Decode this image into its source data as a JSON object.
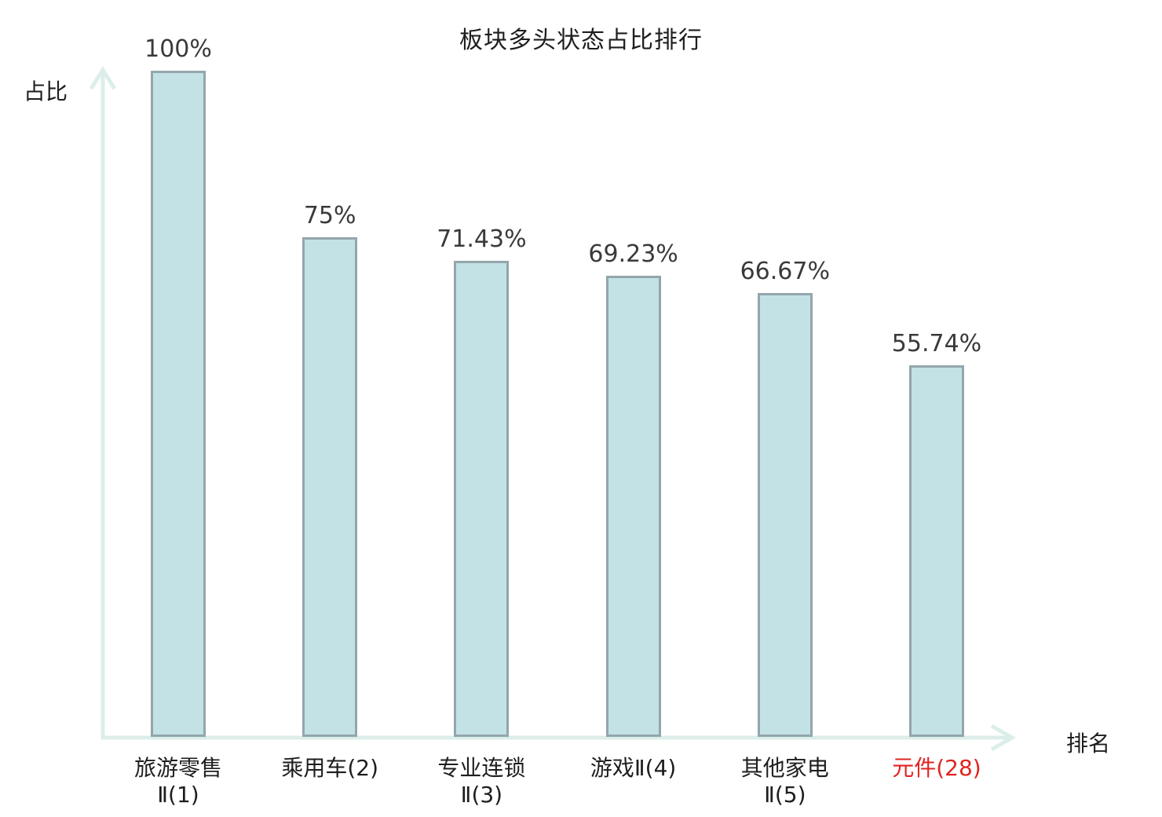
{
  "chart_data": {
    "type": "bar",
    "title": "板块多头状态占比排行",
    "xlabel": "排名",
    "ylabel": "占比",
    "ylim": [
      0,
      100
    ],
    "grid": false,
    "legend": false,
    "categories": [
      "旅游零售Ⅱ(1)",
      "乘用车(2)",
      "专业连锁Ⅱ(3)",
      "游戏Ⅱ(4)",
      "其他家电Ⅱ(5)",
      "元件(28)"
    ],
    "category_lines": [
      [
        "旅游零售",
        "Ⅱ(1)"
      ],
      [
        "乘用车(2)"
      ],
      [
        "专业连锁",
        "Ⅱ(3)"
      ],
      [
        "游戏Ⅱ(4)"
      ],
      [
        "其他家电",
        "Ⅱ(5)"
      ],
      [
        "元件(28)"
      ]
    ],
    "values": [
      100,
      75,
      71.43,
      69.23,
      66.67,
      55.74
    ],
    "value_labels": [
      "100%",
      "75%",
      "71.43%",
      "69.23%",
      "66.67%",
      "55.74%"
    ],
    "highlight_index": 5,
    "colors": {
      "bar_fill": "#c3e2e5",
      "bar_border": "#93a6ab",
      "axis": "#dceeea",
      "title": "#1e1e1e",
      "value_label": "#3a3a3a",
      "category_label": "#1e1e1e",
      "highlight_label": "#e02420"
    }
  }
}
